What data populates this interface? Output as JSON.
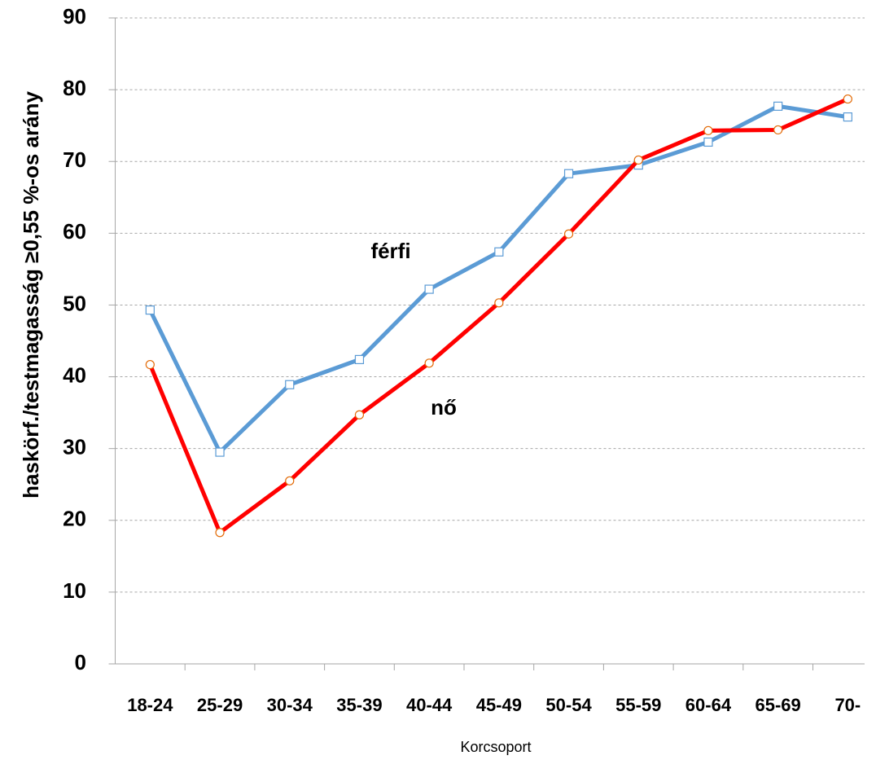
{
  "chart_data": {
    "type": "line",
    "y_label": "haskörf./testmagasság ≥0,55   %-os arány",
    "x_label": "Korcsoport",
    "categories": [
      "18-24",
      "25-29",
      "30-34",
      "35-39",
      "40-44",
      "45-49",
      "50-54",
      "55-59",
      "60-64",
      "65-69",
      "70-"
    ],
    "series": [
      {
        "name": "férfi",
        "color": "#5b9bd5",
        "values": [
          49.3,
          29.5,
          38.9,
          42.4,
          52.2,
          57.4,
          68.3,
          69.5,
          72.7,
          77.7,
          76.2
        ]
      },
      {
        "name": "nő",
        "color": "#ff0000",
        "values": [
          41.7,
          18.3,
          25.5,
          34.7,
          41.9,
          50.3,
          59.9,
          70.2,
          74.3,
          74.4,
          78.7
        ]
      }
    ],
    "ylim": [
      0,
      90
    ],
    "yticks": [
      0,
      10,
      20,
      30,
      40,
      50,
      60,
      70,
      80,
      90
    ],
    "grid": true,
    "annotations": [
      "férfi",
      "nő"
    ]
  }
}
